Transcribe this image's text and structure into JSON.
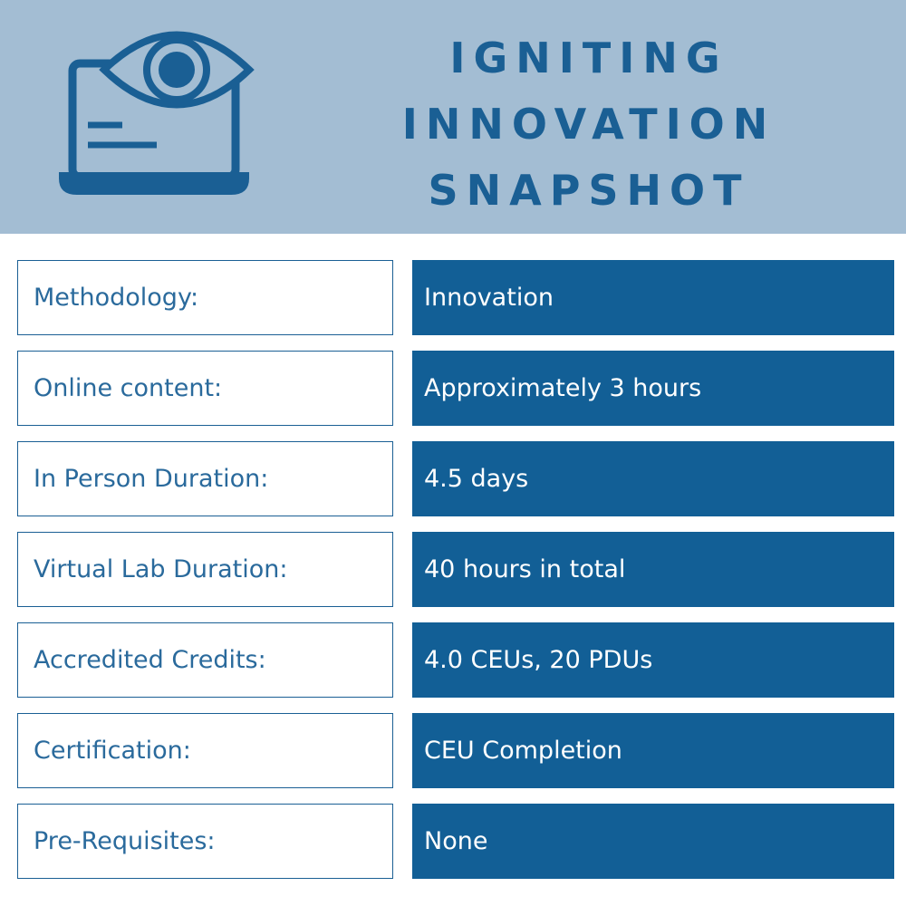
{
  "header": {
    "title_lines": [
      "IGNITING",
      "INNOVATION",
      "SNAPSHOT"
    ]
  },
  "rows": [
    {
      "label": "Methodology:",
      "value": "Innovation"
    },
    {
      "label": "Online content:",
      "value": "Approximately 3 hours"
    },
    {
      "label": "In Person Duration:",
      "value": "4.5 days"
    },
    {
      "label": "Virtual Lab Duration:",
      "value": "40 hours in total"
    },
    {
      "label": "Accredited Credits:",
      "value": "4.0 CEUs, 20 PDUs"
    },
    {
      "label": "Certification:",
      "value": "CEU Completion"
    },
    {
      "label": "Pre-Requisites:",
      "value": "None"
    }
  ]
}
